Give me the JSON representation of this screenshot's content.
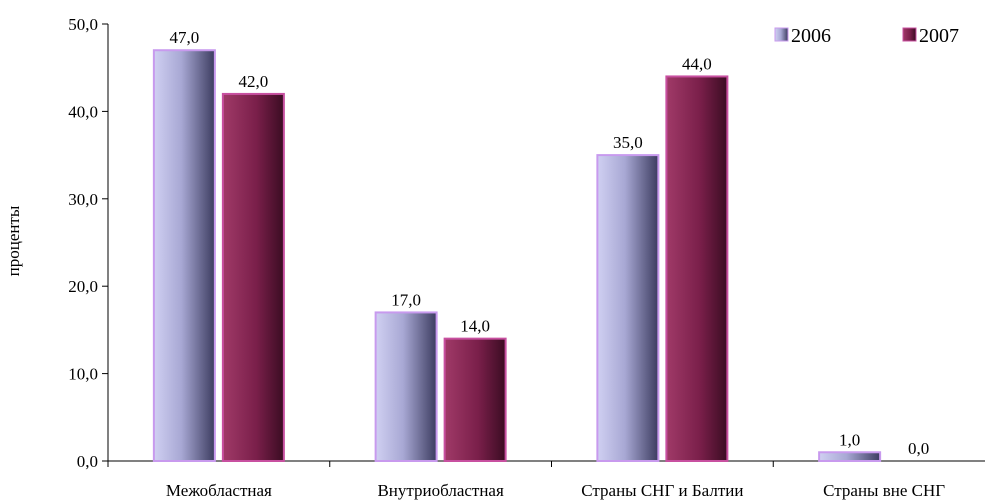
{
  "chart_data": {
    "type": "bar",
    "categories": [
      "Межобластная",
      "Внутриобластная",
      "Страны СНГ и Балтии",
      "Страны вне СНГ"
    ],
    "series": [
      {
        "name": "2006",
        "values": [
          47.0,
          17.0,
          35.0,
          1.0
        ],
        "color": "#8a8ab8"
      },
      {
        "name": "2007",
        "values": [
          42.0,
          14.0,
          44.0,
          0.0
        ],
        "color": "#7a1f4a"
      }
    ],
    "ylabel": "проценты",
    "ylim": [
      0,
      50
    ],
    "yticks": [
      "0,0",
      "10,0",
      "20,0",
      "30,0",
      "40,0",
      "50,0"
    ],
    "data_labels": [
      [
        "47,0",
        "17,0",
        "35,0",
        "1,0"
      ],
      [
        "42,0",
        "14,0",
        "44,0",
        "0,0"
      ]
    ],
    "legend": {
      "position": "top-right",
      "entries": [
        "2006",
        "2007"
      ]
    },
    "grid": false
  }
}
